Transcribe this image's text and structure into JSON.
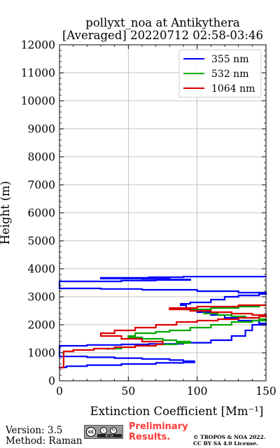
{
  "chart_data": {
    "type": "line",
    "title": [
      "pollyxt_noa at Antikythera",
      "[Averaged] 20220712 02:58-03:46"
    ],
    "xlabel": "Extinction Coefficient [Mm⁻¹]",
    "ylabel": "Height (m)",
    "xlim": [
      0,
      150
    ],
    "ylim": [
      0,
      12000
    ],
    "xticks": [
      0,
      50,
      100,
      150
    ],
    "yticks": [
      0,
      1000,
      2000,
      3000,
      4000,
      5000,
      6000,
      7000,
      8000,
      9000,
      10000,
      11000,
      12000
    ],
    "grid": true,
    "legend_position": "top-right",
    "series": [
      {
        "name": "355 nm",
        "color": "#0000ff",
        "x": [
          0,
          5,
          20,
          45,
          70,
          90,
          98,
          90,
          80,
          60,
          40,
          20,
          0,
          20,
          45,
          65,
          90,
          110,
          125,
          135,
          140,
          150,
          145,
          130,
          120,
          110,
          100,
          92,
          88,
          95,
          110,
          120,
          130,
          145,
          150,
          130,
          100,
          60,
          30,
          0,
          0,
          45,
          70,
          95,
          80,
          60,
          30,
          65,
          90,
          150
        ],
        "y": [
          450,
          480,
          520,
          560,
          600,
          640,
          660,
          700,
          740,
          780,
          810,
          840,
          870,
          1250,
          1280,
          1300,
          1320,
          1360,
          1450,
          1600,
          1800,
          2000,
          2050,
          2150,
          2250,
          2350,
          2450,
          2550,
          2700,
          2750,
          2800,
          2900,
          3000,
          3050,
          3100,
          3150,
          3200,
          3250,
          3280,
          3300,
          3400,
          3550,
          3580,
          3600,
          3620,
          3640,
          3650,
          3680,
          3700,
          3720
        ]
      },
      {
        "name": "532 nm",
        "color": "#00aa00",
        "x": [
          35,
          45,
          55,
          70,
          85,
          95,
          85,
          75,
          60,
          50,
          55,
          70,
          80,
          95,
          110,
          125,
          140,
          150,
          145,
          135,
          125,
          115,
          105,
          95,
          110,
          130,
          145,
          150
        ],
        "y": [
          1100,
          1150,
          1200,
          1250,
          1300,
          1350,
          1400,
          1450,
          1500,
          1550,
          1600,
          1700,
          1750,
          1800,
          1900,
          2000,
          2100,
          2150,
          2200,
          2250,
          2300,
          2350,
          2400,
          2500,
          2550,
          2600,
          2650,
          2700
        ]
      },
      {
        "name": "1064 nm",
        "color": "#dd0000",
        "x": [
          0,
          3,
          10,
          25,
          40,
          55,
          70,
          75,
          60,
          45,
          30,
          40,
          55,
          70,
          85,
          100,
          115,
          130,
          145,
          150,
          140,
          125,
          110,
          95,
          80,
          100,
          130,
          150
        ],
        "y": [
          450,
          470,
          1050,
          1100,
          1150,
          1200,
          1250,
          1300,
          1400,
          1500,
          1600,
          1700,
          1800,
          1900,
          2000,
          2100,
          2150,
          2200,
          2250,
          2300,
          2350,
          2400,
          2450,
          2500,
          2550,
          2600,
          2650,
          2700
        ]
      }
    ]
  },
  "footer": {
    "version": "Version: 3.5",
    "method": "Method: Raman",
    "preliminary": [
      "Preliminary",
      "Results."
    ],
    "copyright": [
      "© TROPOS & NOA 2022.",
      "CC BY SA 4.0 License."
    ],
    "cc_badge": {
      "icon": "cc-by-sa-badge",
      "text": "BY SA"
    }
  }
}
